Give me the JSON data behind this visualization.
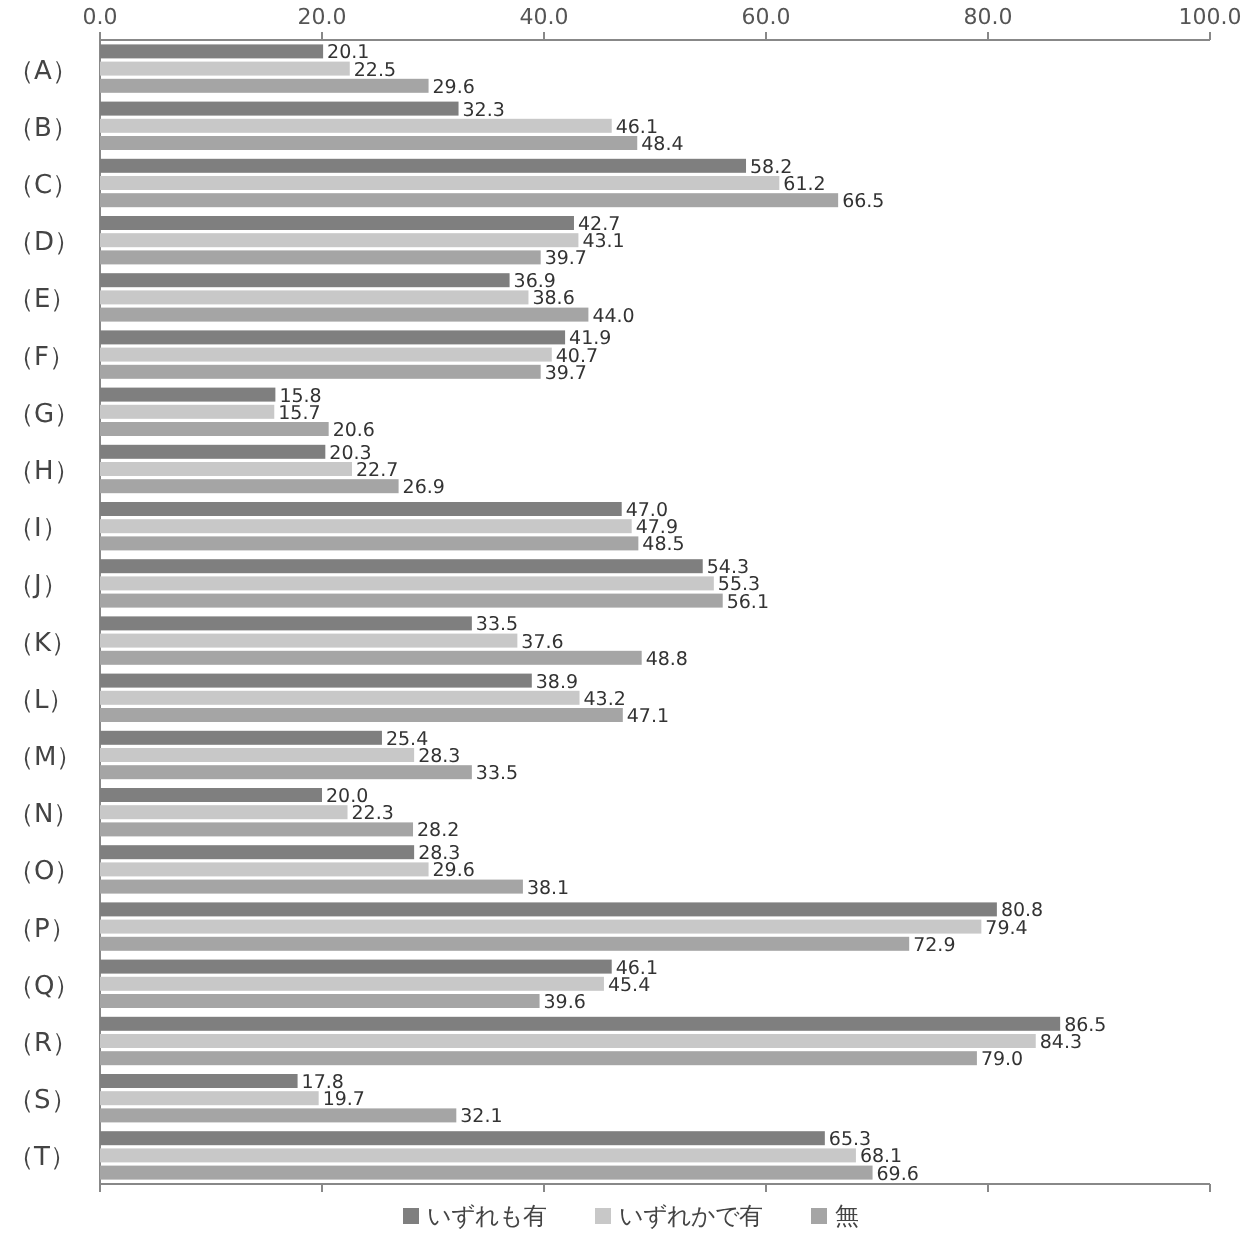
{
  "chart_data": {
    "type": "bar",
    "orientation": "horizontal",
    "categories": [
      "（A）",
      "（B）",
      "（C）",
      "（D）",
      "（E）",
      "（F）",
      "（G）",
      "（H）",
      "（I）",
      "（J）",
      "（K）",
      "（L）",
      "（M）",
      "（N）",
      "（O）",
      "（P）",
      "（Q）",
      "（R）",
      "（S）",
      "（T）"
    ],
    "xlim": [
      0,
      100
    ],
    "xticks": [
      {
        "value": 0,
        "label": "0.0"
      },
      {
        "value": 20,
        "label": "20.0"
      },
      {
        "value": 40,
        "label": "40.0"
      },
      {
        "value": 60,
        "label": "60.0"
      },
      {
        "value": 80,
        "label": "80.0"
      },
      {
        "value": 100,
        "label": "100.0"
      }
    ],
    "legend": "bottom",
    "grid": false,
    "series": [
      {
        "name": "いずれも有",
        "color": "#7f7f7f",
        "values": [
          20.1,
          32.3,
          58.2,
          42.7,
          36.9,
          41.9,
          15.8,
          20.3,
          47.0,
          54.3,
          33.5,
          38.9,
          25.4,
          20.0,
          28.3,
          80.8,
          46.1,
          86.5,
          17.8,
          65.3
        ],
        "value_labels": [
          "20.1",
          "32.3",
          "58.2",
          "42.7",
          "36.9",
          "41.9",
          "15.8",
          "20.3",
          "47.0",
          "54.3",
          "33.5",
          "38.9",
          "25.4",
          "20.0",
          "28.3",
          "80.8",
          "46.1",
          "86.5",
          "17.8",
          "65.3"
        ]
      },
      {
        "name": "いずれかで有",
        "color": "#c8c8c8",
        "values": [
          22.5,
          46.1,
          61.2,
          43.1,
          38.6,
          40.7,
          15.7,
          22.7,
          47.9,
          55.3,
          37.6,
          43.2,
          28.3,
          22.3,
          29.6,
          79.4,
          45.4,
          84.3,
          19.7,
          68.1
        ],
        "value_labels": [
          "22.5",
          "46.1",
          "61.2",
          "43.1",
          "38.6",
          "40.7",
          "15.7",
          "22.7",
          "47.9",
          "55.3",
          "37.6",
          "43.2",
          "28.3",
          "22.3",
          "29.6",
          "79.4",
          "45.4",
          "84.3",
          "19.7",
          "68.1"
        ]
      },
      {
        "name": "無",
        "color": "#a5a5a5",
        "values": [
          29.6,
          48.4,
          66.5,
          39.7,
          44.0,
          39.7,
          20.6,
          26.9,
          48.5,
          56.1,
          48.8,
          47.1,
          33.5,
          28.2,
          38.1,
          72.9,
          39.6,
          79.0,
          32.1,
          69.6
        ],
        "value_labels": [
          "29.6",
          "48.4",
          "66.5",
          "39.7",
          "44.0",
          "39.7",
          "20.6",
          "26.9",
          "48.5",
          "56.1",
          "48.8",
          "47.1",
          "33.5",
          "28.2",
          "38.1",
          "72.9",
          "39.6",
          "79.0",
          "32.1",
          "69.6"
        ]
      }
    ]
  }
}
